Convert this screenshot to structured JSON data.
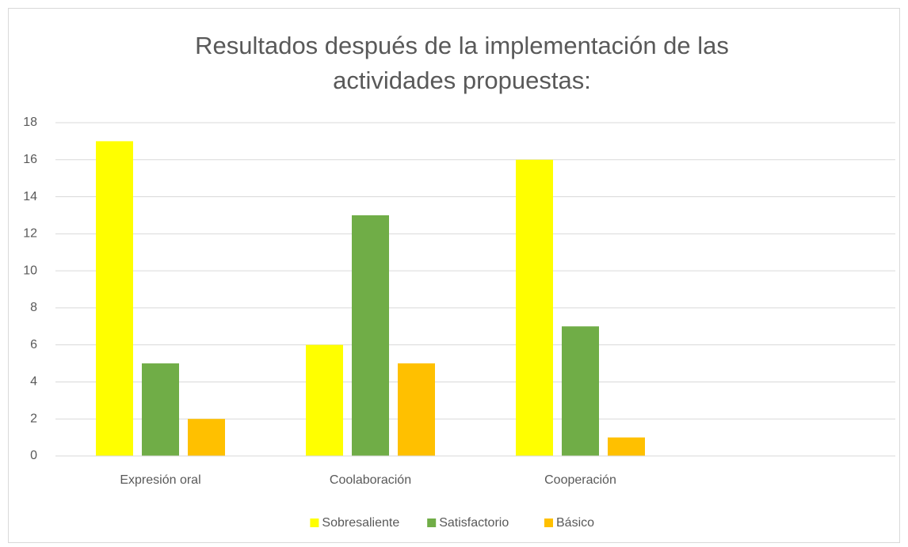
{
  "chart_data": {
    "type": "bar",
    "title": [
      "Resultados después de la implementación de las",
      "actividades propuestas:"
    ],
    "categories": [
      "Expresión oral",
      "Coolaboración",
      "Cooperación",
      null
    ],
    "series": [
      {
        "name": "Sobresaliente",
        "color": "#ffff00",
        "values": [
          17,
          6,
          16,
          null
        ]
      },
      {
        "name": "Satisfactorio",
        "color": "#70ad47",
        "values": [
          5,
          13,
          7,
          null
        ]
      },
      {
        "name": "Básico",
        "color": "#ffc000",
        "values": [
          2,
          5,
          1,
          null
        ]
      }
    ],
    "ylim": [
      0,
      18
    ],
    "yticks": [
      0,
      2,
      4,
      6,
      8,
      10,
      12,
      14,
      16,
      18
    ],
    "grid": true,
    "legend": "bottom"
  }
}
